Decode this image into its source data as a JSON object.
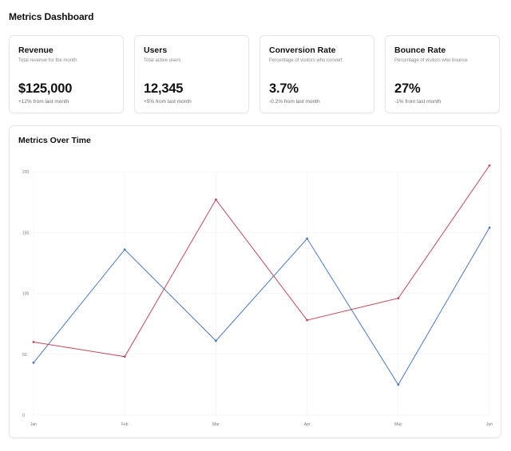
{
  "header": {
    "title": "Metrics Dashboard"
  },
  "cards": [
    {
      "title": "Revenue",
      "subtitle": "Total revenue for the month",
      "value": "$125,000",
      "change": "+12% from last month"
    },
    {
      "title": "Users",
      "subtitle": "Total active users",
      "value": "12,345",
      "change": "+5% from last month"
    },
    {
      "title": "Conversion Rate",
      "subtitle": "Percentage of visitors who convert",
      "value": "3.7%",
      "change": "-0.2% from last month"
    },
    {
      "title": "Bounce Rate",
      "subtitle": "Percentage of visitors who bounce",
      "value": "27%",
      "change": "-1% from last month"
    }
  ],
  "chart": {
    "title": "Metrics Over Time"
  },
  "colors": {
    "series_blue": "#4a78c8",
    "series_red": "#c8465a",
    "grid": "#f0f0f0"
  },
  "chart_data": {
    "type": "line",
    "title": "Metrics Over Time",
    "xlabel": "",
    "ylabel": "",
    "categories": [
      "Jan",
      "Feb",
      "Mar",
      "Apr",
      "May",
      "Jun"
    ],
    "ylim": [
      0,
      200
    ],
    "yticks": [
      0,
      50,
      100,
      150,
      200
    ],
    "grid": true,
    "legend": "none",
    "series": [
      {
        "color": "#4a78c8",
        "values": [
          43,
          136,
          61,
          145,
          25,
          154
        ]
      },
      {
        "color": "#c8465a",
        "values": [
          60,
          48,
          177,
          78,
          96,
          205
        ]
      }
    ]
  }
}
